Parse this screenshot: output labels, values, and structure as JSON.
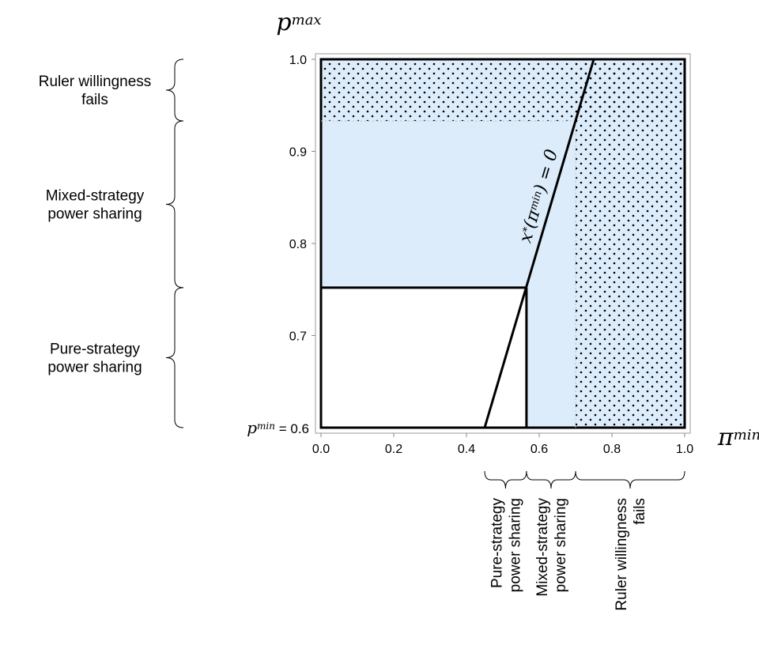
{
  "chart_data": {
    "type": "area",
    "title": "",
    "xlabel": {
      "base": "π",
      "sup": "min"
    },
    "ylabel": {
      "base": "p",
      "sup": "max"
    },
    "pmin_label": {
      "base": "p",
      "sup": "min",
      "suffix": " = 0.6"
    },
    "xlim": [
      0.0,
      1.0
    ],
    "ylim": [
      0.6,
      1.0
    ],
    "x_ticks": [
      "0.0",
      "0.2",
      "0.4",
      "0.6",
      "0.8",
      "1.0"
    ],
    "x_tick_values": [
      0.0,
      0.2,
      0.4,
      0.6,
      0.8,
      1.0
    ],
    "y_ticks": [
      "0.7",
      "0.8",
      "0.9",
      "1.0"
    ],
    "y_tick_values": [
      0.7,
      0.8,
      0.9,
      1.0
    ],
    "grid": false,
    "thresholds": {
      "p_pure": 0.752,
      "p_willing": 0.933,
      "pi_pure": 0.565,
      "pi_willing": 0.7
    },
    "zero_line": {
      "label": {
        "prefix": "x",
        "star": "*",
        "mid": "(π",
        "sup": "min",
        "suffix": ") = 0"
      },
      "points": [
        [
          0.45,
          0.6
        ],
        [
          0.75,
          1.0
        ]
      ]
    },
    "regions": [
      {
        "kind": "mixed",
        "color": "#dcecfb",
        "x": [
          0.0,
          1.0
        ],
        "y": [
          0.752,
          1.0
        ]
      },
      {
        "kind": "mixed",
        "color": "#dcecfb",
        "x": [
          0.565,
          1.0
        ],
        "y": [
          0.6,
          0.752
        ]
      },
      {
        "kind": "willingness_fails",
        "pattern": "dots",
        "x": [
          0.0,
          1.0
        ],
        "y": [
          0.933,
          1.0
        ]
      },
      {
        "kind": "willingness_fails",
        "pattern": "dots",
        "x": [
          0.7,
          1.0
        ],
        "y": [
          0.6,
          1.0
        ]
      }
    ],
    "y_braces": [
      {
        "y": [
          0.933,
          1.0
        ],
        "label": [
          "Ruler willingness",
          "fails"
        ]
      },
      {
        "y": [
          0.752,
          0.933
        ],
        "label": [
          "Mixed-strategy",
          "power sharing"
        ]
      },
      {
        "y": [
          0.6,
          0.752
        ],
        "label": [
          "Pure-strategy",
          "power sharing"
        ]
      }
    ],
    "x_braces": [
      {
        "x": [
          0.45,
          0.565
        ],
        "label": [
          "Pure-strategy",
          "power sharing"
        ]
      },
      {
        "x": [
          0.565,
          0.7
        ],
        "label": [
          "Mixed-strategy",
          "power sharing"
        ]
      },
      {
        "x": [
          0.7,
          1.0
        ],
        "label": [
          "Ruler willingness",
          "fails"
        ]
      }
    ]
  }
}
